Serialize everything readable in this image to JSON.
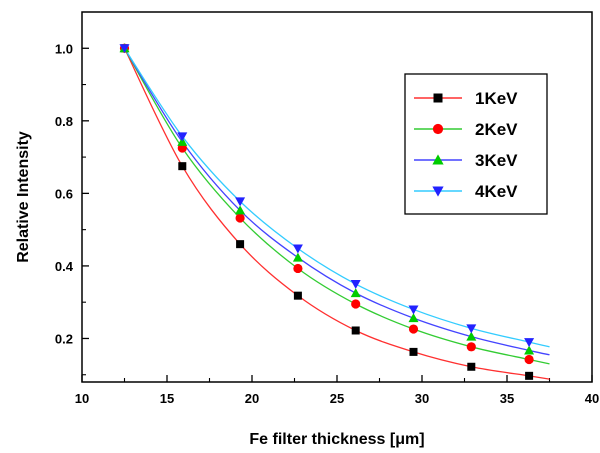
{
  "chart_data": {
    "type": "scatter",
    "xlabel": "Fe filter thickness [μm]",
    "ylabel": "Relative Intensity",
    "xlim": [
      10,
      40
    ],
    "ylim": [
      0.08,
      1.1
    ],
    "xticks": [
      10,
      15,
      20,
      25,
      30,
      35,
      40
    ],
    "yticks": [
      0.2,
      0.4,
      0.6,
      0.8,
      1.0
    ],
    "xtick_labels": [
      "10",
      "15",
      "20",
      "25",
      "30",
      "35",
      "40"
    ],
    "ytick_labels": [
      "0.2",
      "0.4",
      "0.6",
      "0.8",
      "1.0"
    ],
    "legend_position": "top-right",
    "x": [
      12.5,
      15.9,
      19.3,
      22.7,
      26.1,
      29.5,
      32.9,
      36.3
    ],
    "series": [
      {
        "name": "1KeV",
        "marker": "square",
        "color": "#000000",
        "line_color": "#ff3030",
        "values": [
          1.0,
          0.675,
          0.46,
          0.318,
          0.222,
          0.163,
          0.122,
          0.097
        ],
        "fit_end": 0.088
      },
      {
        "name": "2KeV",
        "marker": "circle",
        "color": "#ff0000",
        "line_color": "#33cc33",
        "values": [
          1.0,
          0.725,
          0.532,
          0.393,
          0.295,
          0.226,
          0.177,
          0.142
        ],
        "fit_end": 0.13
      },
      {
        "name": "3KeV",
        "marker": "triangle-up",
        "color": "#00cc00",
        "line_color": "#4444ff",
        "values": [
          1.0,
          0.742,
          0.553,
          0.423,
          0.325,
          0.256,
          0.205,
          0.167
        ],
        "fit_end": 0.155
      },
      {
        "name": "4KeV",
        "marker": "triangle-down",
        "color": "#2222ff",
        "line_color": "#33ccff",
        "values": [
          1.0,
          0.757,
          0.578,
          0.448,
          0.35,
          0.28,
          0.228,
          0.19
        ],
        "fit_end": 0.177
      }
    ],
    "fit_x_end": 37.5
  }
}
